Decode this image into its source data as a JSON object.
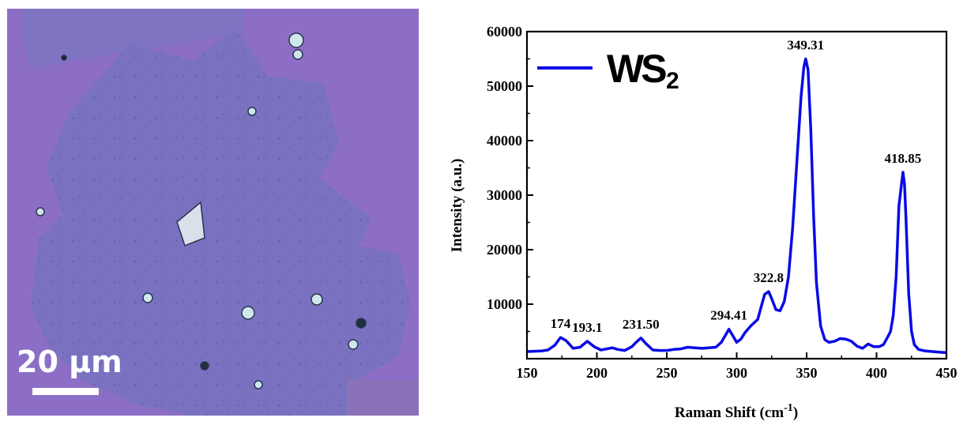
{
  "micrograph": {
    "scale_bar_label": "20 μm",
    "substrate_color": "#8c6bc5",
    "flake_color": "#7b73c0"
  },
  "chart_data": {
    "type": "line",
    "title": "",
    "xlabel": "Raman Shift (cm",
    "xlabel_sup": "-1",
    "xlabel_close": ")",
    "ylabel": "Intensity (a.u.)",
    "xlim": [
      150,
      450
    ],
    "ylim": [
      0,
      60000
    ],
    "xticks": [
      150,
      200,
      250,
      300,
      350,
      400,
      450
    ],
    "yticks": [
      10000,
      20000,
      30000,
      40000,
      50000,
      60000
    ],
    "legend": {
      "position": "top-left"
    },
    "series": [
      {
        "name": "WS",
        "name_subscript": "2",
        "color": "#0a0ae6",
        "x": [
          150,
          160,
          165,
          170,
          174,
          178,
          183,
          188,
          193.1,
          198,
          203,
          207,
          211,
          215,
          220,
          225,
          228,
          231.5,
          235,
          240,
          245,
          250,
          255,
          260,
          265,
          270,
          275,
          280,
          285,
          289,
          292,
          294.41,
          297,
          300,
          303,
          306,
          310,
          315,
          318,
          320,
          322.8,
          325,
          328,
          331,
          334,
          337,
          340,
          343,
          346,
          348,
          349.31,
          351,
          353,
          355,
          357,
          360,
          363,
          366,
          370,
          374,
          378,
          382,
          386,
          390,
          394,
          398,
          402,
          405,
          408,
          410,
          412,
          414,
          416,
          418.85,
          420,
          421,
          423,
          425,
          427,
          430,
          435,
          440,
          445,
          450
        ],
        "y": [
          1300,
          1400,
          1600,
          2500,
          3900,
          3300,
          1900,
          2100,
          3200,
          2200,
          1600,
          1800,
          2000,
          1700,
          1500,
          2200,
          3000,
          3800,
          2800,
          1600,
          1500,
          1500,
          1700,
          1800,
          2100,
          2000,
          1900,
          2000,
          2100,
          3000,
          4300,
          5400,
          4300,
          3000,
          3600,
          4800,
          6000,
          7200,
          10000,
          11800,
          12300,
          11000,
          9000,
          8800,
          10500,
          15000,
          24000,
          36000,
          48000,
          53500,
          55000,
          53000,
          42000,
          26000,
          14000,
          6000,
          3500,
          3000,
          3200,
          3700,
          3600,
          3200,
          2300,
          1900,
          2700,
          2200,
          2200,
          2600,
          4000,
          5000,
          8000,
          15000,
          28000,
          34200,
          32000,
          26000,
          12000,
          5000,
          2600,
          1700,
          1400,
          1300,
          1200,
          1100
        ]
      }
    ],
    "annotations": [
      {
        "label": "174",
        "x": 174,
        "y": 3900
      },
      {
        "label": "193.1",
        "x": 193.1,
        "y": 3200
      },
      {
        "label": "231.50",
        "x": 231.5,
        "y": 3800
      },
      {
        "label": "294.41",
        "x": 294.41,
        "y": 5400
      },
      {
        "label": "322.8",
        "x": 322.8,
        "y": 12300
      },
      {
        "label": "349.31",
        "x": 349.31,
        "y": 55000
      },
      {
        "label": "418.85",
        "x": 418.85,
        "y": 34200
      }
    ]
  }
}
